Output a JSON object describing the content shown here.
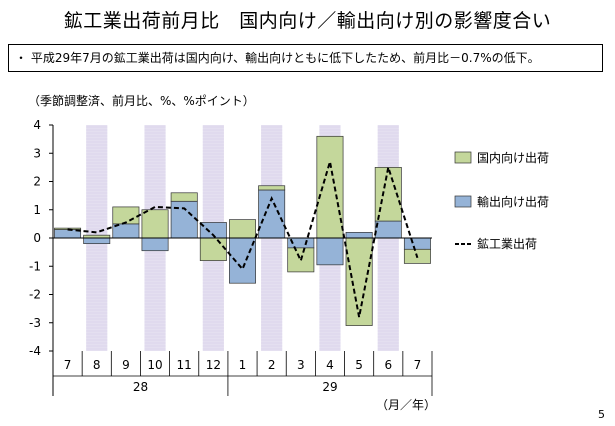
{
  "page": {
    "title": "鉱工業出荷前月比　国内向け／輸出向け別の影響度合い",
    "note": "・ 平成29年7月の鉱工業出荷は国内向け、輸出向けともに低下したため、前月比－0.7%の低下。",
    "unit_label": "（季節調整済、前月比、%、%ポイント）",
    "x_unit_label": "（月／年）",
    "page_number": "5"
  },
  "chart_data": {
    "type": "bar",
    "stacked": true,
    "categories": [
      "7",
      "8",
      "9",
      "10",
      "11",
      "12",
      "1",
      "2",
      "3",
      "4",
      "5",
      "6",
      "7"
    ],
    "year_groups": [
      {
        "label": "28",
        "start": 0,
        "end": 5
      },
      {
        "label": "29",
        "start": 6,
        "end": 12
      }
    ],
    "ylim": [
      -4,
      4
    ],
    "yticks": [
      -4,
      -3,
      -2,
      -1,
      0,
      1,
      2,
      3,
      4
    ],
    "shaded_categories": [
      1,
      3,
      5,
      7,
      9,
      11
    ],
    "series": [
      {
        "name": "国内向け出荷",
        "kind": "bar",
        "color": "#c4d79b",
        "values": [
          0.05,
          0.1,
          0.6,
          1.0,
          0.3,
          -0.8,
          0.65,
          0.15,
          -0.85,
          3.6,
          -3.1,
          1.9,
          -0.5
        ]
      },
      {
        "name": "輸出向け出荷",
        "kind": "bar",
        "color": "#95b3d7",
        "values": [
          0.3,
          -0.2,
          0.5,
          -0.45,
          1.3,
          0.55,
          -1.6,
          1.7,
          -0.35,
          -0.95,
          0.2,
          0.6,
          -0.4
        ]
      },
      {
        "name": "鉱工業出荷",
        "kind": "line",
        "color": "#000000",
        "dashed": true,
        "values": [
          0.3,
          0.2,
          0.55,
          1.1,
          1.05,
          0.1,
          -1.1,
          1.4,
          -0.8,
          2.7,
          -2.8,
          2.5,
          -0.7
        ]
      }
    ],
    "legend_position": "right"
  }
}
